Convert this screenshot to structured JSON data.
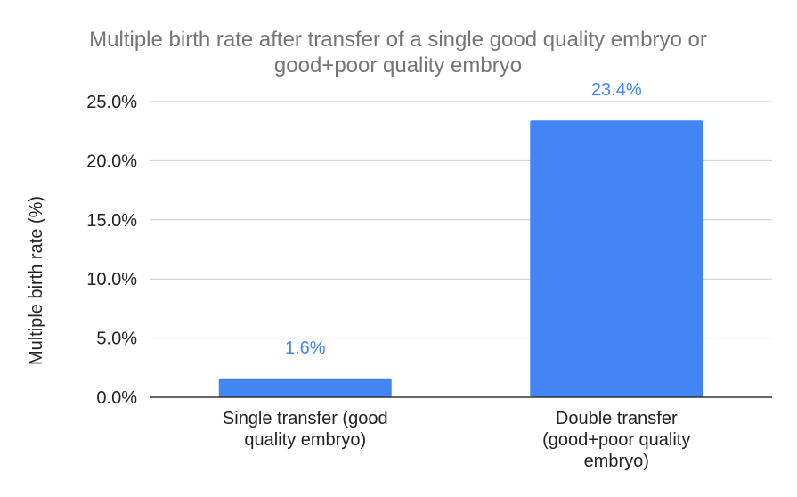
{
  "chart_data": {
    "type": "bar",
    "title_lines": [
      "Multiple birth rate after transfer of a single good quality embryo or",
      "good+poor quality embryo"
    ],
    "ylabel": "Multiple birth rate (%)",
    "xlabel": "",
    "categories": [
      {
        "lines": [
          "Single transfer (good",
          "quality embryo)"
        ]
      },
      {
        "lines": [
          "Double transfer",
          "(good+poor quality",
          "embryo)"
        ]
      }
    ],
    "values": [
      1.6,
      23.4
    ],
    "data_labels": [
      "1.6%",
      "23.4%"
    ],
    "ylim": [
      0,
      25
    ],
    "yticks": [
      {
        "value": 0,
        "label": "0.0%"
      },
      {
        "value": 5,
        "label": "5.0%"
      },
      {
        "value": 10,
        "label": "10.0%"
      },
      {
        "value": 15,
        "label": "15.0%"
      },
      {
        "value": 20,
        "label": "20.0%"
      },
      {
        "value": 25,
        "label": "25.0%"
      }
    ],
    "grid": true,
    "legend": "none",
    "colors": {
      "bar": "#4285f4",
      "data_label": "#4285f4",
      "title": "#757575",
      "text": "#222222",
      "gridline": "#cccccc",
      "axis": "#333333"
    }
  }
}
